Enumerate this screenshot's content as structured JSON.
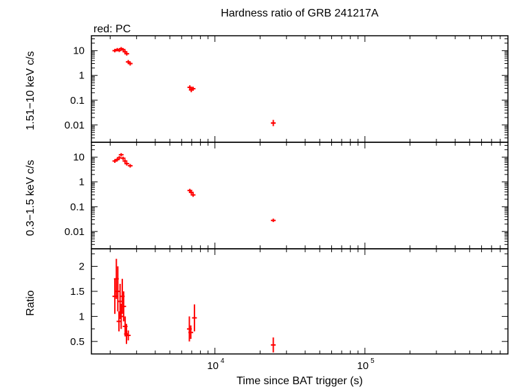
{
  "title": "Hardness ratio of GRB 241217A",
  "legend": "red: PC",
  "series_color": "#ff0000",
  "xlabel": "Time since BAT trigger (s)",
  "chart_data": {
    "type": "scatter",
    "x_scale": "log",
    "xlim": [
      1500,
      900000
    ],
    "x_tick_labels": [
      {
        "base": "10",
        "exp": "4",
        "value": 10000
      },
      {
        "base": "10",
        "exp": "5",
        "value": 100000
      }
    ],
    "panels": [
      {
        "id": "hard",
        "ylabel": "1.51−10 keV c/s",
        "y_scale": "log",
        "ylim": [
          0.002,
          40
        ],
        "y_ticks": [
          {
            "label": "10",
            "value": 10
          },
          {
            "label": "1",
            "value": 1
          },
          {
            "label": "0.1",
            "value": 0.1
          },
          {
            "label": "0.01",
            "value": 0.01
          }
        ],
        "points": [
          {
            "x": 2150,
            "y": 10.0,
            "ylo": 8.5,
            "yhi": 11.8
          },
          {
            "x": 2230,
            "y": 11.0,
            "ylo": 9.4,
            "yhi": 12.8
          },
          {
            "x": 2300,
            "y": 10.2,
            "ylo": 8.8,
            "yhi": 11.8
          },
          {
            "x": 2370,
            "y": 12.0,
            "ylo": 10.3,
            "yhi": 13.9
          },
          {
            "x": 2440,
            "y": 11.0,
            "ylo": 9.5,
            "yhi": 12.7
          },
          {
            "x": 2510,
            "y": 9.0,
            "ylo": 7.6,
            "yhi": 10.6
          },
          {
            "x": 2580,
            "y": 7.5,
            "ylo": 6.3,
            "yhi": 8.8
          },
          {
            "x": 2640,
            "y": 3.5,
            "ylo": 2.9,
            "yhi": 4.2
          },
          {
            "x": 2720,
            "y": 3.0,
            "ylo": 2.5,
            "yhi": 3.6
          },
          {
            "x": 6800,
            "y": 0.33,
            "ylo": 0.27,
            "yhi": 0.4
          },
          {
            "x": 6950,
            "y": 0.26,
            "ylo": 0.21,
            "yhi": 0.32
          },
          {
            "x": 7150,
            "y": 0.29,
            "ylo": 0.24,
            "yhi": 0.35
          },
          {
            "x": 24500,
            "y": 0.012,
            "ylo": 0.009,
            "yhi": 0.016
          }
        ]
      },
      {
        "id": "soft",
        "ylabel": "0.3−1.5 keV c/s",
        "y_scale": "log",
        "ylim": [
          0.002,
          40
        ],
        "y_ticks": [
          {
            "label": "10",
            "value": 10
          },
          {
            "label": "1",
            "value": 1
          },
          {
            "label": "0.1",
            "value": 0.1
          },
          {
            "label": "0.01",
            "value": 0.01
          }
        ],
        "points": [
          {
            "x": 2150,
            "y": 7.0,
            "ylo": 5.9,
            "yhi": 8.3
          },
          {
            "x": 2230,
            "y": 8.0,
            "ylo": 6.8,
            "yhi": 9.4
          },
          {
            "x": 2300,
            "y": 9.5,
            "ylo": 8.1,
            "yhi": 11.1
          },
          {
            "x": 2370,
            "y": 12.5,
            "ylo": 10.7,
            "yhi": 14.6
          },
          {
            "x": 2440,
            "y": 9.0,
            "ylo": 7.7,
            "yhi": 10.5
          },
          {
            "x": 2510,
            "y": 7.0,
            "ylo": 5.9,
            "yhi": 8.3
          },
          {
            "x": 2580,
            "y": 5.5,
            "ylo": 4.6,
            "yhi": 6.5
          },
          {
            "x": 2720,
            "y": 4.5,
            "ylo": 3.8,
            "yhi": 5.3
          },
          {
            "x": 6800,
            "y": 0.45,
            "ylo": 0.38,
            "yhi": 0.53
          },
          {
            "x": 6950,
            "y": 0.38,
            "ylo": 0.32,
            "yhi": 0.45
          },
          {
            "x": 7150,
            "y": 0.3,
            "ylo": 0.25,
            "yhi": 0.36
          },
          {
            "x": 24500,
            "y": 0.028,
            "ylo": 0.024,
            "yhi": 0.033
          }
        ]
      },
      {
        "id": "ratio",
        "ylabel": "Ratio",
        "y_scale": "linear",
        "ylim": [
          0.25,
          2.35
        ],
        "y_ticks": [
          {
            "label": "2",
            "value": 2
          },
          {
            "label": "1.5",
            "value": 1.5
          },
          {
            "label": "1",
            "value": 1
          },
          {
            "label": "0.5",
            "value": 0.5
          }
        ],
        "points": [
          {
            "x": 2150,
            "y": 1.4,
            "ylo": 1.05,
            "yhi": 1.75
          },
          {
            "x": 2200,
            "y": 1.75,
            "ylo": 1.35,
            "yhi": 2.15
          },
          {
            "x": 2250,
            "y": 1.5,
            "ylo": 1.1,
            "yhi": 2.0
          },
          {
            "x": 2290,
            "y": 0.9,
            "ylo": 0.7,
            "yhi": 1.1
          },
          {
            "x": 2330,
            "y": 1.3,
            "ylo": 0.95,
            "yhi": 1.65
          },
          {
            "x": 2370,
            "y": 1.0,
            "ylo": 0.75,
            "yhi": 1.25
          },
          {
            "x": 2410,
            "y": 1.4,
            "ylo": 1.05,
            "yhi": 1.75
          },
          {
            "x": 2460,
            "y": 1.2,
            "ylo": 0.9,
            "yhi": 1.5
          },
          {
            "x": 2520,
            "y": 0.8,
            "ylo": 0.6,
            "yhi": 1.0
          },
          {
            "x": 2570,
            "y": 0.65,
            "ylo": 0.45,
            "yhi": 0.85
          },
          {
            "x": 2640,
            "y": 0.62,
            "ylo": 0.52,
            "yhi": 0.72
          },
          {
            "x": 6750,
            "y": 0.75,
            "ylo": 0.5,
            "yhi": 1.0
          },
          {
            "x": 6900,
            "y": 0.68,
            "ylo": 0.55,
            "yhi": 0.82
          },
          {
            "x": 7300,
            "y": 0.97,
            "ylo": 0.7,
            "yhi": 1.24
          },
          {
            "x": 24500,
            "y": 0.43,
            "ylo": 0.28,
            "yhi": 0.58
          }
        ]
      }
    ]
  }
}
